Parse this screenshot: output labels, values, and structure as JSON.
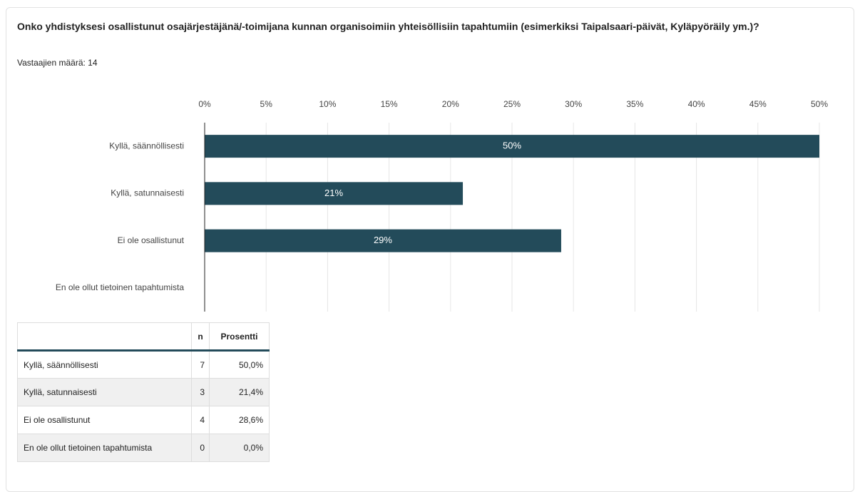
{
  "chart_data": {
    "type": "bar",
    "orientation": "horizontal",
    "title": "Onko yhdistyksesi osallistunut osajärjestäjänä/-toimijana kunnan organisoimiin yhteisöllisiin tapahtumiin (esimerkiksi Taipalsaari-päivät, Kyläpyöräily ym.)?",
    "subtitle": "Vastaajien määrä: 14",
    "categories": [
      "Kyllä, säännöllisesti",
      "Kyllä, satunnaisesti",
      "Ei ole osallistunut",
      "En ole ollut tietoinen tapahtumista"
    ],
    "values": [
      50,
      21,
      29,
      0
    ],
    "value_labels": [
      "50%",
      "21%",
      "29%",
      null
    ],
    "color": "#234b5a",
    "xlim": [
      0,
      50
    ],
    "xticks": [
      {
        "value": 0,
        "label": "0%"
      },
      {
        "value": 5,
        "label": "5%"
      },
      {
        "value": 10,
        "label": "10%"
      },
      {
        "value": 15,
        "label": "15%"
      },
      {
        "value": 20,
        "label": "20%"
      },
      {
        "value": 25,
        "label": "25%"
      },
      {
        "value": 30,
        "label": "30%"
      },
      {
        "value": 35,
        "label": "35%"
      },
      {
        "value": 40,
        "label": "40%"
      },
      {
        "value": 45,
        "label": "45%"
      },
      {
        "value": 50,
        "label": "50%"
      }
    ],
    "grid": true
  },
  "table": {
    "columns": [
      "n",
      "Prosentti"
    ],
    "rows": [
      [
        "Kyllä, säännöllisesti",
        7,
        "50,0%"
      ],
      [
        "Kyllä, satunnaisesti",
        3,
        "21,4%"
      ],
      [
        "Ei ole osallistunut",
        4,
        "28,6%"
      ],
      [
        "En ole ollut tietoinen tapahtumista",
        0,
        "0,0%"
      ]
    ]
  }
}
